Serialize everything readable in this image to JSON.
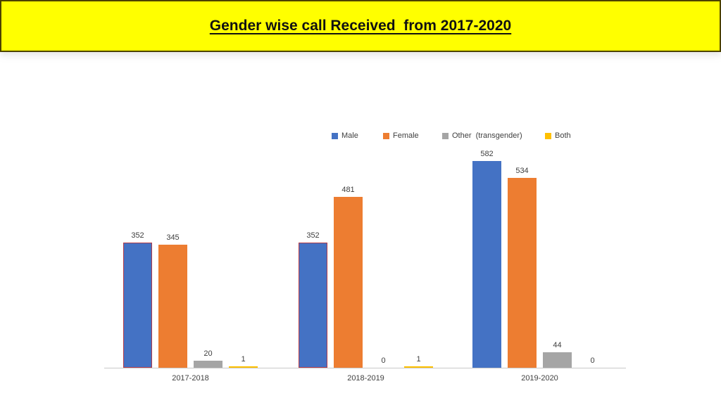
{
  "banner": {
    "title": "Gender wise call Received  from 2017-2020",
    "bg_color": "#FFFF00",
    "border_color": "#4C4200",
    "text_color": "#111111"
  },
  "chart_data": {
    "type": "bar",
    "title": "Gender wise call Received from 2017-2020",
    "categories": [
      "2017-2018",
      "2018-2019",
      "2019-2020"
    ],
    "series": [
      {
        "name": "Male",
        "color": "#4472C4",
        "values": [
          352,
          352,
          582
        ],
        "outlined": [
          true,
          true,
          false
        ],
        "outline_color": "#B23A48"
      },
      {
        "name": "Female",
        "color": "#ED7D31",
        "values": [
          345,
          481,
          534
        ]
      },
      {
        "name": "Other  (transgender)",
        "color": "#A5A5A5",
        "values": [
          20,
          0,
          44
        ]
      },
      {
        "name": "Both",
        "color": "#FFC000",
        "values": [
          1,
          1,
          0
        ]
      }
    ],
    "data_labels": [
      [
        "352",
        "345",
        "20",
        "1"
      ],
      [
        "352",
        "481",
        "0",
        "1"
      ],
      [
        "582",
        "534",
        "44",
        "0"
      ]
    ],
    "xlabel": "",
    "ylabel": "",
    "ylim": [
      0,
      620
    ],
    "grid": false,
    "axis_line_color": "#C9C9C9",
    "legend_position": "top"
  }
}
